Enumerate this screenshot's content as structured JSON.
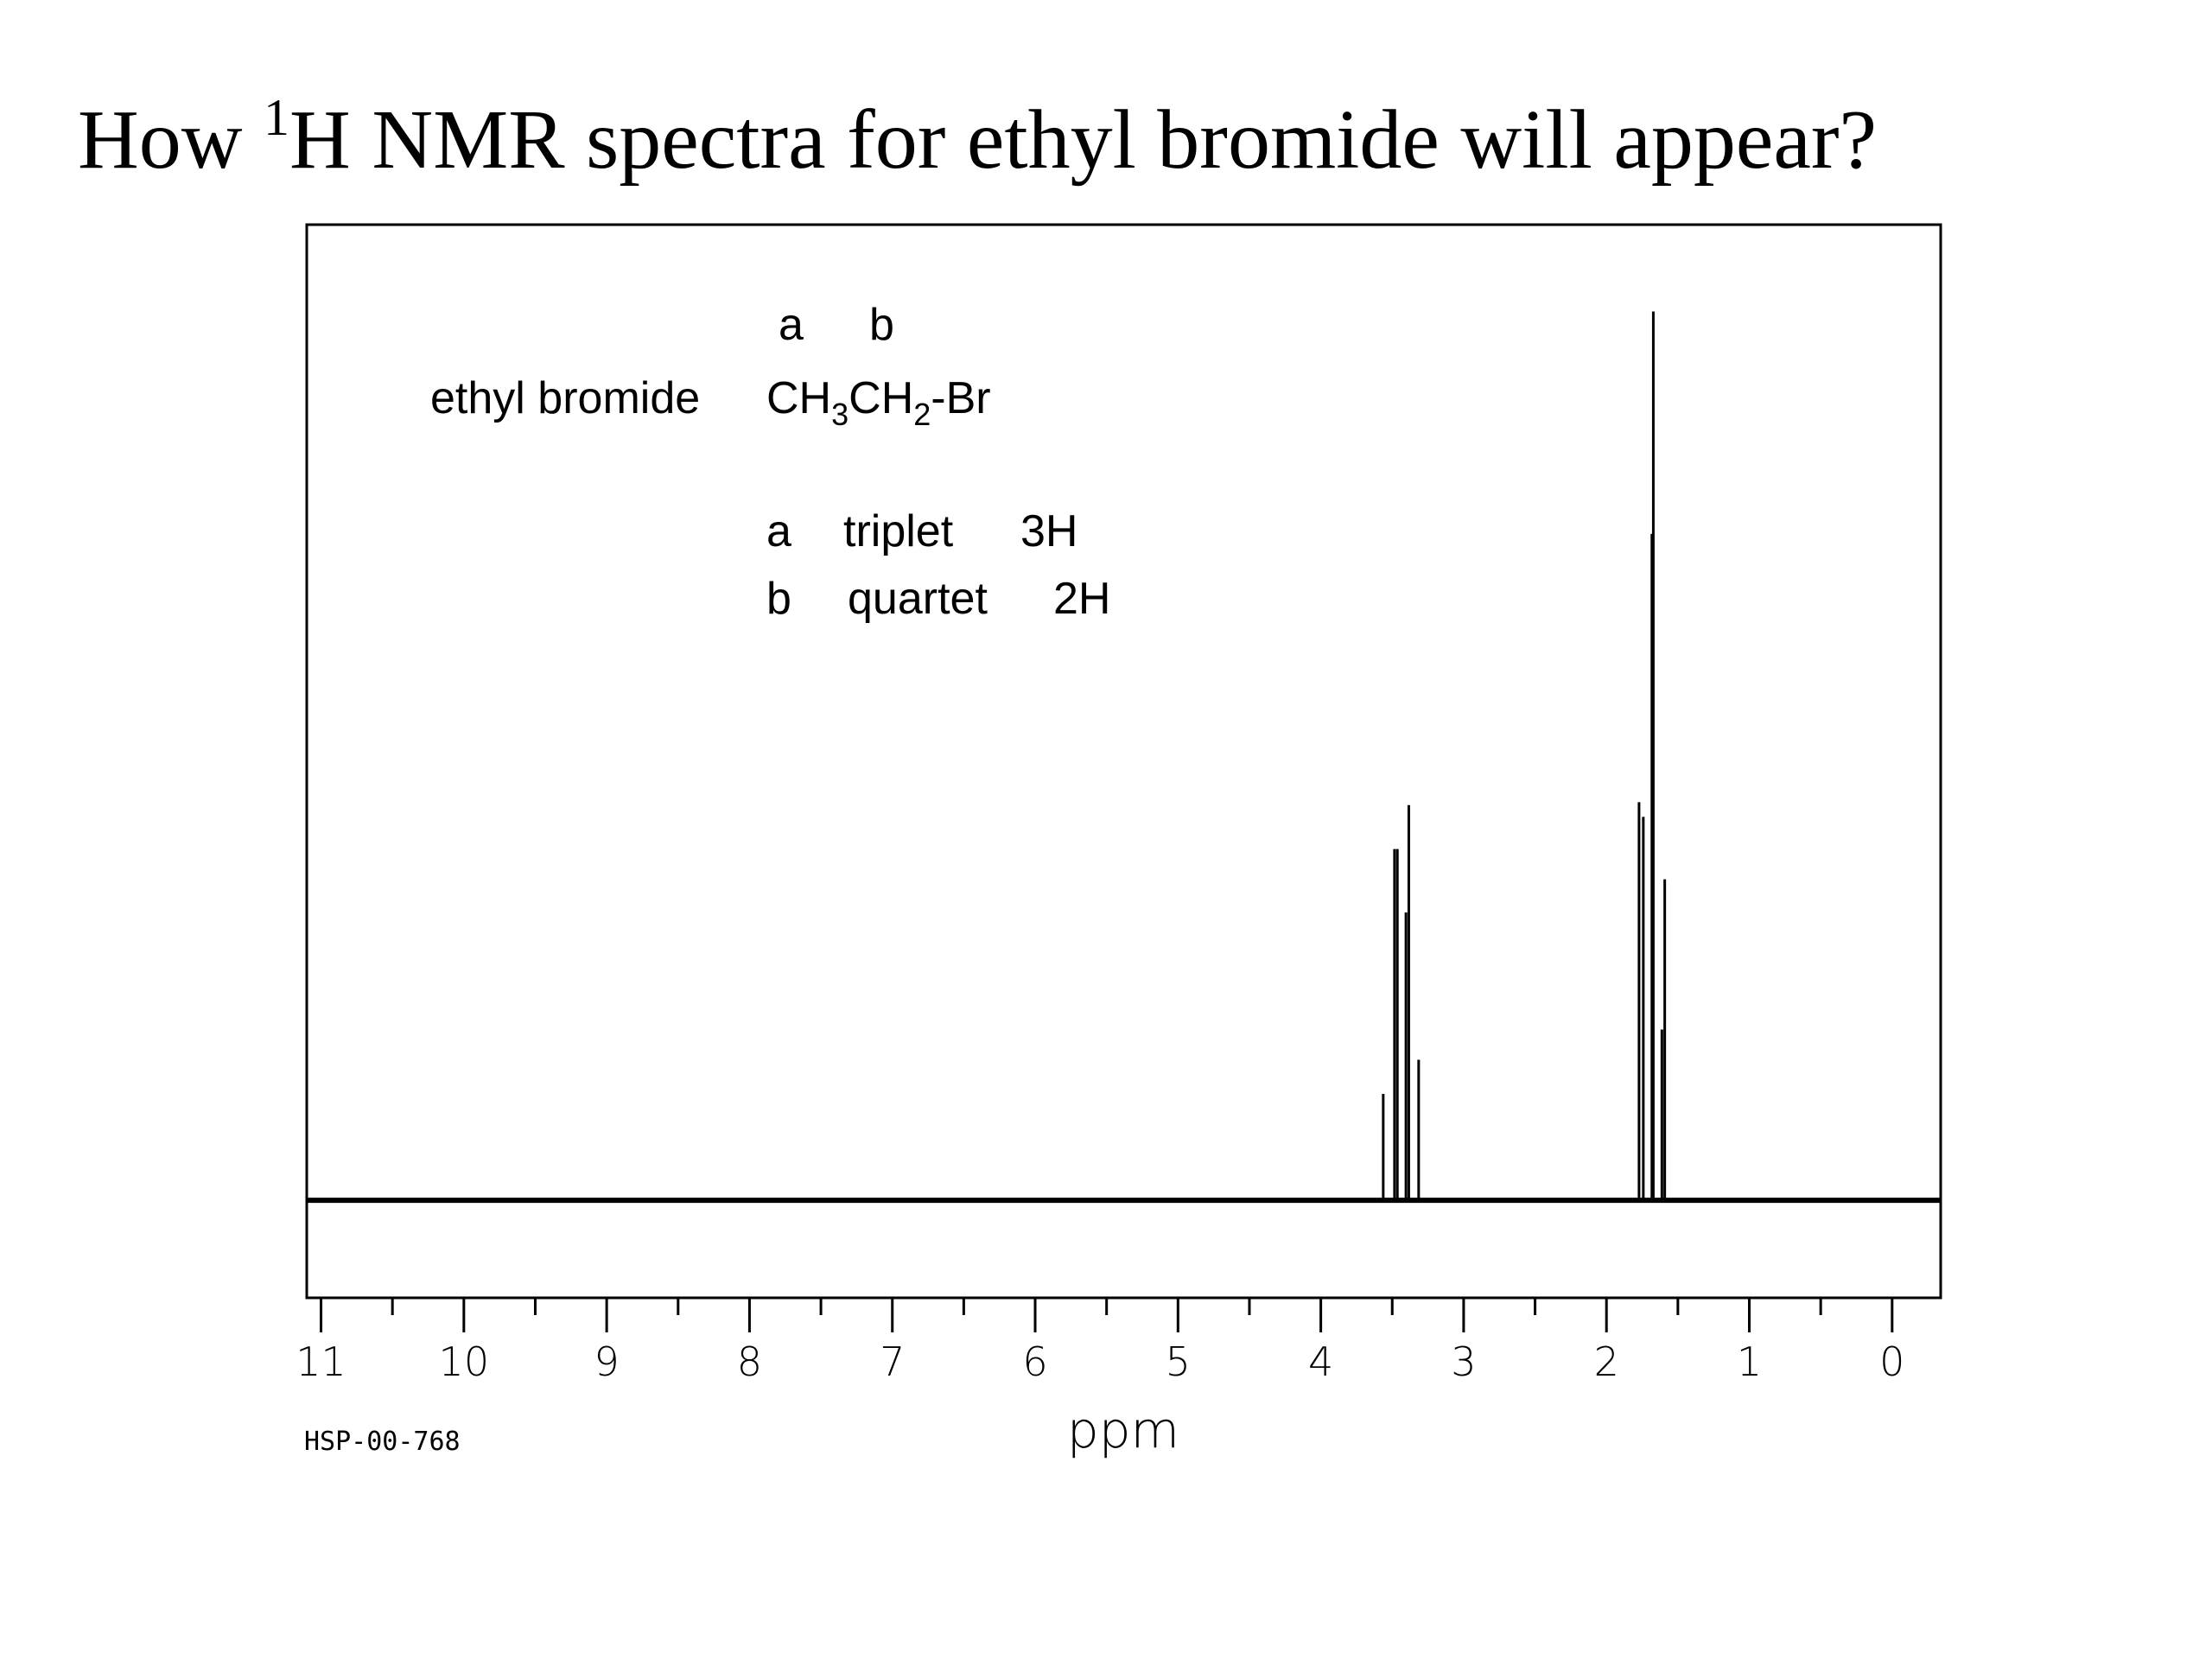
{
  "chart_data": {
    "type": "stem",
    "title": {
      "before": "How ",
      "sup": "1",
      "after": "H NMR spectra for ethyl bromide will appear?"
    },
    "xlabel": "ppm",
    "code": "HSP-00-768",
    "annotation": {
      "letters": [
        "a",
        "b"
      ],
      "name": "ethyl bromide",
      "formula": [
        "CH",
        "3",
        "CH",
        "2",
        "-Br"
      ],
      "rows": [
        [
          "a",
          "triplet",
          "3H"
        ],
        [
          "b",
          "quartet",
          "2H"
        ]
      ]
    },
    "x": [
      3.563,
      3.484,
      3.464,
      3.404,
      3.384,
      3.315,
      1.772,
      1.742,
      1.682,
      1.672,
      1.612,
      1.592
    ],
    "values": [
      10.9,
      36,
      36,
      29.5,
      40.5,
      14.4,
      40.8,
      39.3,
      68.3,
      91.1,
      17.5,
      32.9
    ],
    "color": "#000000",
    "xlim": [
      11.1,
      -0.34
    ],
    "ylim": [
      -10,
      100
    ],
    "xticks": [
      11,
      10,
      9,
      8,
      7,
      6,
      5,
      4,
      3,
      2,
      1,
      0
    ],
    "xminorticks": [
      10.5,
      9.5,
      8.5,
      7.5,
      6.5,
      5.5,
      4.5,
      3.5,
      2.5,
      1.5,
      0.5
    ]
  }
}
